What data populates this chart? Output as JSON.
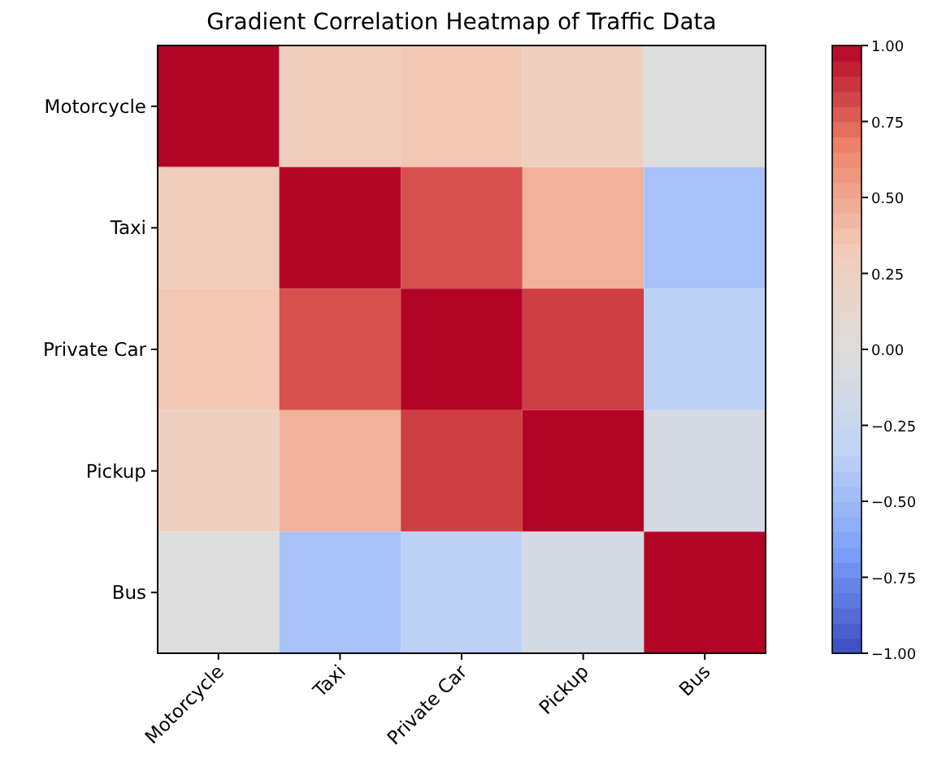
{
  "chart_data": {
    "type": "heatmap",
    "title": "Gradient Correlation Heatmap of Traffic Data",
    "categories": [
      "Motorcycle",
      "Taxi",
      "Private Car",
      "Pickup",
      "Bus"
    ],
    "y_categories": [
      "Motorcycle",
      "Taxi",
      "Private Car",
      "Pickup",
      "Bus"
    ],
    "cells": [
      [
        1.0,
        0.3,
        0.35,
        0.25,
        0.0
      ],
      [
        0.3,
        1.0,
        0.8,
        0.45,
        -0.45
      ],
      [
        0.35,
        0.8,
        1.0,
        0.85,
        -0.35
      ],
      [
        0.25,
        0.45,
        0.85,
        1.0,
        -0.1
      ],
      [
        0.0,
        -0.45,
        -0.35,
        -0.1,
        1.0
      ]
    ],
    "clim": [
      -1,
      1
    ],
    "cticks": [
      {
        "value": -1,
        "label": "−1.00"
      },
      {
        "value": -0.75,
        "label": "−0.75"
      },
      {
        "value": -0.5,
        "label": "−0.50"
      },
      {
        "value": -0.25,
        "label": "−0.25"
      },
      {
        "value": 0,
        "label": "0.00"
      },
      {
        "value": 0.25,
        "label": "0.25"
      },
      {
        "value": 0.5,
        "label": "0.50"
      },
      {
        "value": 0.75,
        "label": "0.75"
      },
      {
        "value": 1,
        "label": "1.00"
      }
    ]
  }
}
